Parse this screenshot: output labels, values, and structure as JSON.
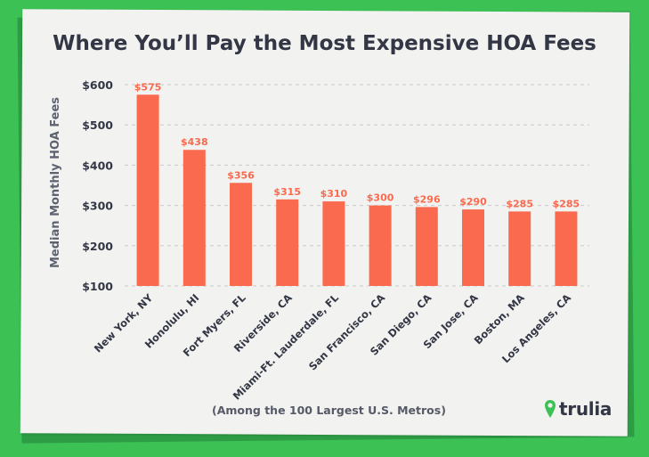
{
  "colors": {
    "background": "#3cc155",
    "card": "#f2f2f0",
    "bar": "#f96a4e",
    "bar_label": "#f96a4e",
    "text": "#333644",
    "axis_text": "#5d6270",
    "grid": "#c9c9c9",
    "brand_icon": "#3cc155"
  },
  "chart_data": {
    "type": "bar",
    "title": "Where You’ll Pay the Most Expensive HOA Fees",
    "ylabel": "Median Monthly HOA Fees",
    "xlabel": "",
    "ylim": [
      100,
      600
    ],
    "yticks": [
      100,
      200,
      300,
      400,
      500,
      600
    ],
    "ytick_labels": [
      "$100",
      "$200",
      "$300",
      "$400",
      "$500",
      "$600"
    ],
    "grid": "horizontal dashed",
    "categories": [
      "New York, NY",
      "Honolulu, HI",
      "Fort Myers, FL",
      "Riverside, CA",
      "Miami-Ft. Lauderdale, FL",
      "San Francisco, CA",
      "San Diego, CA",
      "San Jose, CA",
      "Boston, MA",
      "Los Angeles, CA"
    ],
    "values": [
      575,
      438,
      356,
      315,
      310,
      300,
      296,
      290,
      285,
      285
    ],
    "value_labels": [
      "$575",
      "$438",
      "$356",
      "$315",
      "$310",
      "$300",
      "$296",
      "$290",
      "$285",
      "$285"
    ],
    "annotation": "(Among the 100 Largest U.S. Metros)"
  },
  "brand": {
    "icon": "map-pin-icon",
    "label": "trulia"
  }
}
